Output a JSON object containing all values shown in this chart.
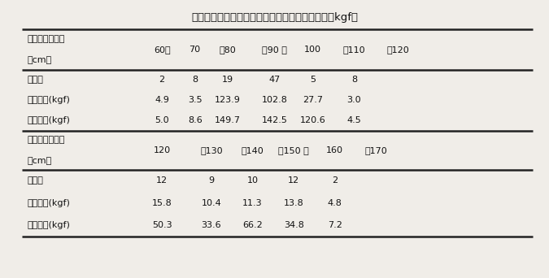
{
  "title": "表１．上部バーにおける前端からの距離と荷重（kgf）",
  "background_color": "#f0ede8",
  "figsize": [
    6.75,
    3.42
  ],
  "dpi": 100,
  "section1_header_label1": "前端からの距離",
  "section1_header_label2": "（cm）",
  "section1_header_cols": [
    "60～",
    "70",
    "～80",
    "～90 ～",
    "100",
    "～110",
    "～120"
  ],
  "section1_rows": [
    [
      "計測数",
      "2",
      "8",
      "19",
      "47",
      "5",
      "8"
    ],
    [
      "平均荷重(kgf)",
      "4.9",
      "3.5",
      "123.9",
      "102.8",
      "27.7",
      "3.0"
    ],
    [
      "最大荷重(kgf)",
      "5.0",
      "8.6",
      "149.7",
      "142.5",
      "120.6",
      "4.5"
    ]
  ],
  "section2_header_label1": "前端からの距離",
  "section2_header_label2": "（cm）",
  "section2_header_cols": [
    "120",
    "～130",
    "～140",
    "～150 ～",
    "160",
    "～170"
  ],
  "section2_rows": [
    [
      "計測数",
      "12",
      "9",
      "10",
      "12",
      "2"
    ],
    [
      "平均荷重(kgf)",
      "15.8",
      "10.4",
      "11.3",
      "13.8",
      "4.8"
    ],
    [
      "最大荷重(kgf)",
      "50.3",
      "33.6",
      "66.2",
      "34.8",
      "7.2"
    ]
  ],
  "font_size_title": 9.5,
  "font_size_data": 8.0,
  "line_color": "#222222",
  "text_color": "#111111",
  "lw_thick": 1.8
}
